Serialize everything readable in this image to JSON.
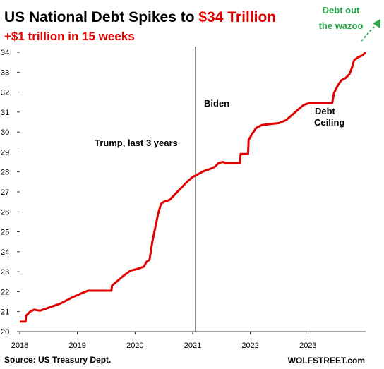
{
  "colors": {
    "line": "#e00000",
    "title_black": "#000000",
    "title_red": "#e00000",
    "wazoo": "#2aa84a",
    "divider": "#000000",
    "grid": "none"
  },
  "title": {
    "prefix": "US National Debt Spikes to ",
    "highlight": "$34 Trillion"
  },
  "subtitle": "+$1 trillion  in 15 weeks",
  "annotations": {
    "trump": "Trump, last 3 years",
    "biden": "Biden",
    "debt_ceiling_line1": "Debt",
    "debt_ceiling_line2": "Ceiling",
    "wazoo_line1": "Debt out",
    "wazoo_line2": "the wazoo"
  },
  "footer": {
    "source": "Source: US Treasury Dept.",
    "brand": "WOLFSTREET.com"
  },
  "chart_data": {
    "type": "line",
    "title": "US National Debt Spikes to $34 Trillion",
    "subtitle": "+$1 trillion  in 15 weeks",
    "xlabel": "",
    "ylabel": "",
    "xlim": [
      2018.0,
      2024.0
    ],
    "ylim": [
      20,
      34
    ],
    "grid": false,
    "x_ticks": [
      2018,
      2019,
      2020,
      2021,
      2022,
      2023
    ],
    "x_tick_labels": [
      "2018",
      "2019",
      "2020",
      "2021",
      "2022",
      "2023"
    ],
    "y_ticks": [
      20,
      21,
      22,
      23,
      24,
      25,
      26,
      27,
      28,
      29,
      30,
      31,
      32,
      33,
      34
    ],
    "y_tick_labels": [
      "20",
      "21",
      "22",
      "23",
      "24",
      "25",
      "26",
      "27",
      "28",
      "29",
      "30",
      "31",
      "32",
      "33",
      "34"
    ],
    "vertical_marker": {
      "x": 2021.05
    },
    "series": [
      {
        "points": [
          [
            2018.0,
            20.5
          ],
          [
            2018.1,
            20.5
          ],
          [
            2018.11,
            20.8
          ],
          [
            2018.18,
            21.0
          ],
          [
            2018.25,
            21.1
          ],
          [
            2018.35,
            21.05
          ],
          [
            2018.5,
            21.2
          ],
          [
            2018.7,
            21.4
          ],
          [
            2018.9,
            21.7
          ],
          [
            2019.1,
            21.95
          ],
          [
            2019.18,
            22.05
          ],
          [
            2019.59,
            22.05
          ],
          [
            2019.6,
            22.3
          ],
          [
            2019.7,
            22.55
          ],
          [
            2019.8,
            22.8
          ],
          [
            2019.92,
            23.05
          ],
          [
            2020.05,
            23.15
          ],
          [
            2020.15,
            23.25
          ],
          [
            2020.2,
            23.5
          ],
          [
            2020.25,
            23.6
          ],
          [
            2020.3,
            24.5
          ],
          [
            2020.35,
            25.2
          ],
          [
            2020.4,
            25.9
          ],
          [
            2020.45,
            26.4
          ],
          [
            2020.5,
            26.5
          ],
          [
            2020.6,
            26.6
          ],
          [
            2020.7,
            26.9
          ],
          [
            2020.8,
            27.2
          ],
          [
            2020.9,
            27.5
          ],
          [
            2021.0,
            27.75
          ],
          [
            2021.1,
            27.9
          ],
          [
            2021.2,
            28.05
          ],
          [
            2021.3,
            28.15
          ],
          [
            2021.38,
            28.25
          ],
          [
            2021.45,
            28.45
          ],
          [
            2021.52,
            28.5
          ],
          [
            2021.58,
            28.45
          ],
          [
            2021.82,
            28.45
          ],
          [
            2021.83,
            28.9
          ],
          [
            2021.96,
            28.9
          ],
          [
            2021.97,
            29.6
          ],
          [
            2022.03,
            29.9
          ],
          [
            2022.1,
            30.2
          ],
          [
            2022.2,
            30.35
          ],
          [
            2022.35,
            30.4
          ],
          [
            2022.5,
            30.45
          ],
          [
            2022.62,
            30.6
          ],
          [
            2022.72,
            30.85
          ],
          [
            2022.82,
            31.1
          ],
          [
            2022.92,
            31.35
          ],
          [
            2023.02,
            31.45
          ],
          [
            2023.42,
            31.45
          ],
          [
            2023.45,
            31.95
          ],
          [
            2023.52,
            32.35
          ],
          [
            2023.58,
            32.6
          ],
          [
            2023.65,
            32.7
          ],
          [
            2023.72,
            32.9
          ],
          [
            2023.76,
            33.2
          ],
          [
            2023.8,
            33.6
          ],
          [
            2023.87,
            33.75
          ],
          [
            2023.95,
            33.85
          ],
          [
            2024.0,
            34.0
          ]
        ]
      }
    ]
  }
}
